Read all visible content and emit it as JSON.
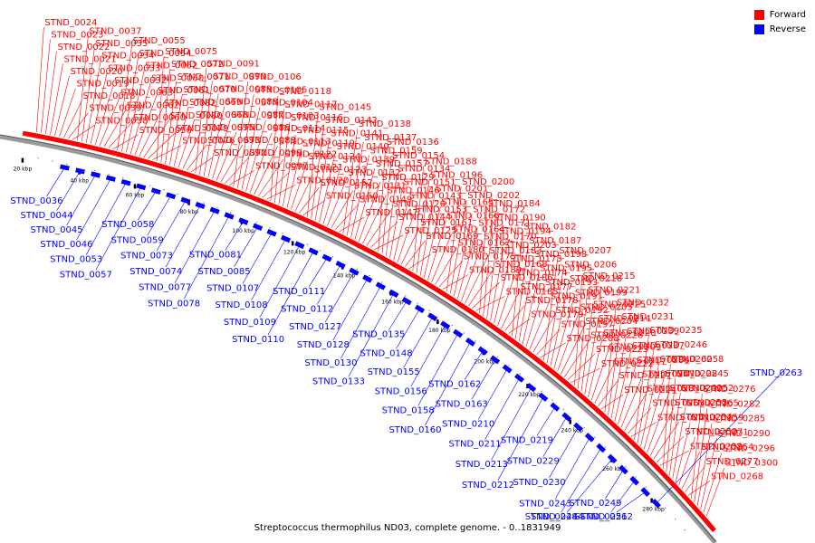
{
  "legend": {
    "forward_label": "Forward",
    "reverse_label": "Reverse",
    "forward_color": "#ff0000",
    "reverse_color": "#0000ff"
  },
  "footer_text": "Streptococcus thermophilus ND03, complete genome. - 0..1831949",
  "axis_ticks": [
    "20 kbp",
    "40 kbp",
    "60 kbp",
    "80 kbp",
    "100 kbp",
    "120 kbp",
    "140 kbp",
    "160 kbp",
    "180 kbp",
    "200 kbp",
    "220 kbp",
    "240 kbp",
    "260 kbp",
    "280 kbp"
  ],
  "forward_genes": [
    "STND_0024",
    "STND_0023",
    "STND_0022",
    "STND_0021",
    "STND_0020",
    "STND_0019",
    "STND_0018",
    "STND_0039",
    "STND_0038",
    "STND_0037",
    "STND_0035",
    "STND_0034",
    "STND_0033",
    "STND_0032",
    "STND_0063",
    "STND_0062",
    "STND_0060",
    "STND_0056",
    "STND_0055",
    "STND_0054",
    "STND_0052",
    "STND_0050",
    "STND_0061",
    "STND_0082",
    "STND_0080",
    "STND_0079",
    "STND_0076",
    "STND_0075",
    "STND_0072",
    "STND_0071",
    "STND_0070",
    "STND_0069",
    "STND_0068",
    "STND_0095",
    "STND_0093",
    "STND_0092",
    "STND_0091",
    "STND_0090",
    "STND_0089",
    "STND_0088",
    "STND_0087",
    "STND_0086",
    "STND_0083",
    "STND_0099",
    "STND_0097",
    "STND_0106",
    "STND_0105",
    "STND_0104",
    "STND_0103",
    "STND_0114",
    "STND_0113",
    "STND_0122",
    "STND_0121",
    "STND_0120",
    "STND_0118",
    "STND_0117",
    "STND_0116",
    "STND_0115",
    "STND_0119",
    "STND_0124",
    "STND_0123",
    "STND_0152",
    "STND_0150",
    "STND_0145",
    "STND_0142",
    "STND_0141",
    "STND_0140",
    "STND_0139",
    "STND_0132",
    "STND_0131",
    "STND_0149",
    "STND_0147",
    "STND_0138",
    "STND_0137",
    "STND_0159",
    "STND_0157",
    "STND_0129",
    "STND_0146",
    "STND_0126",
    "STND_0144",
    "STND_0125",
    "STND_0136",
    "STND_0154",
    "STND_0134",
    "STND_0151",
    "STND_0143",
    "STND_0153",
    "STND_0161",
    "STND_0169",
    "STND_0180",
    "STND_0188",
    "STND_0196",
    "STND_0201",
    "STND_0165",
    "STND_0166",
    "STND_0164",
    "STND_0167",
    "STND_0175",
    "STND_0189",
    "STND_0200",
    "STND_0202",
    "STND_0172",
    "STND_0171",
    "STND_0170",
    "STND_0183",
    "STND_0168",
    "STND_0186",
    "STND_0185",
    "STND_0184",
    "STND_0190",
    "STND_0194",
    "STND_0203",
    "STND_0173",
    "STND_0174",
    "STND_0177",
    "STND_0178",
    "STND_0179",
    "STND_0182",
    "STND_0187",
    "STND_0198",
    "STND_0195",
    "STND_0193",
    "STND_0191",
    "STND_0192",
    "STND_0197",
    "STND_0208",
    "STND_0207",
    "STND_0206",
    "STND_0216",
    "STND_0199",
    "STND_0205",
    "STND_0204",
    "STND_0226",
    "STND_0223",
    "STND_0222",
    "STND_0215",
    "STND_0221",
    "STND_0225",
    "STND_0214",
    "STND_0220",
    "STND_0209",
    "STND_0217",
    "STND_0227",
    "STND_0224",
    "STND_0232",
    "STND_0231",
    "STND_0239",
    "STND_0237",
    "STND_0236",
    "STND_0247",
    "STND_0233",
    "STND_0253",
    "STND_0241",
    "STND_0235",
    "STND_0246",
    "STND_0260",
    "STND_0228",
    "STND_0240",
    "STND_0255",
    "STND_0234",
    "STND_0250",
    "STND_0238",
    "STND_0258",
    "STND_0245",
    "STND_0252",
    "STND_0265",
    "STND_0259",
    "STND_0271",
    "STND_0264",
    "STND_0277",
    "STND_0268",
    "STND_0276",
    "STND_0282",
    "STND_0285",
    "STND_0290",
    "STND_0296",
    "STND_0300"
  ],
  "reverse_genes": [
    "STND_0036",
    "STND_0044",
    "STND_0045",
    "STND_0046",
    "STND_0053",
    "STND_0057",
    "STND_0058",
    "STND_0059",
    "STND_0073",
    "STND_0074",
    "STND_0077",
    "STND_0078",
    "STND_0081",
    "STND_0085",
    "STND_0107",
    "STND_0108",
    "STND_0109",
    "STND_0110",
    "STND_0111",
    "STND_0112",
    "STND_0127",
    "STND_0128",
    "STND_0130",
    "STND_0133",
    "STND_0135",
    "STND_0148",
    "STND_0155",
    "STND_0156",
    "STND_0158",
    "STND_0160",
    "STND_0162",
    "STND_0163",
    "STND_0210",
    "STND_0211",
    "STND_0213",
    "STND_0212",
    "STND_0219",
    "STND_0229",
    "STND_0230",
    "STND_0243",
    "STND_0248",
    "STND_0244",
    "STND_0249",
    "STND_0251",
    "STND_0262",
    "STND_0263"
  ]
}
